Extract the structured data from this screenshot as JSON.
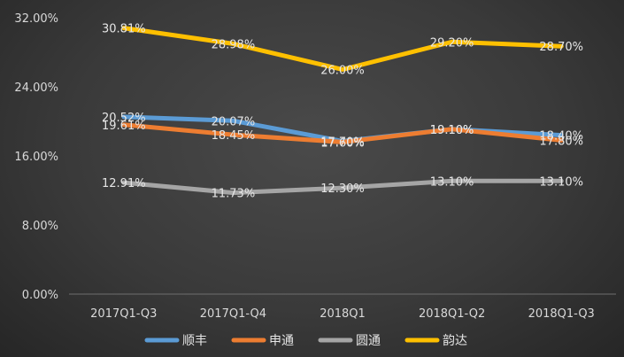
{
  "chart_data": {
    "type": "line",
    "categories": [
      "2017Q1-Q3",
      "2017Q1-Q4",
      "2018Q1",
      "2018Q1-Q2",
      "2018Q1-Q3"
    ],
    "ylim": [
      0,
      32
    ],
    "yticks": [
      "0.00%",
      "8.00%",
      "16.00%",
      "24.00%",
      "32.00%"
    ],
    "ytick_values": [
      0,
      8,
      16,
      24,
      32
    ],
    "grid": false,
    "legend_position": "bottom",
    "series": [
      {
        "name": "顺丰",
        "color": "#5b9bd5",
        "values": [
          20.52,
          20.07,
          17.7,
          19.1,
          18.4
        ],
        "labels": [
          "20.52%",
          "20.07%",
          "17.70%",
          "19.10%",
          "18.40%"
        ]
      },
      {
        "name": "申通",
        "color": "#ed7d31",
        "values": [
          19.61,
          18.45,
          17.6,
          19.1,
          17.8
        ],
        "labels": [
          "19.61%",
          "18.45%",
          "17.60%",
          "19.10%",
          "17.80%"
        ]
      },
      {
        "name": "圆通",
        "color": "#a5a5a5",
        "values": [
          12.91,
          11.73,
          12.3,
          13.1,
          13.1
        ],
        "labels": [
          "12.91%",
          "11.73%",
          "12.30%",
          "13.10%",
          "13.10%"
        ]
      },
      {
        "name": "韵达",
        "color": "#ffc000",
        "values": [
          30.81,
          28.98,
          26.0,
          29.2,
          28.7
        ],
        "labels": [
          "30.81%",
          "28.98%",
          "26.00%",
          "29.20%",
          "28.70%"
        ]
      }
    ]
  }
}
